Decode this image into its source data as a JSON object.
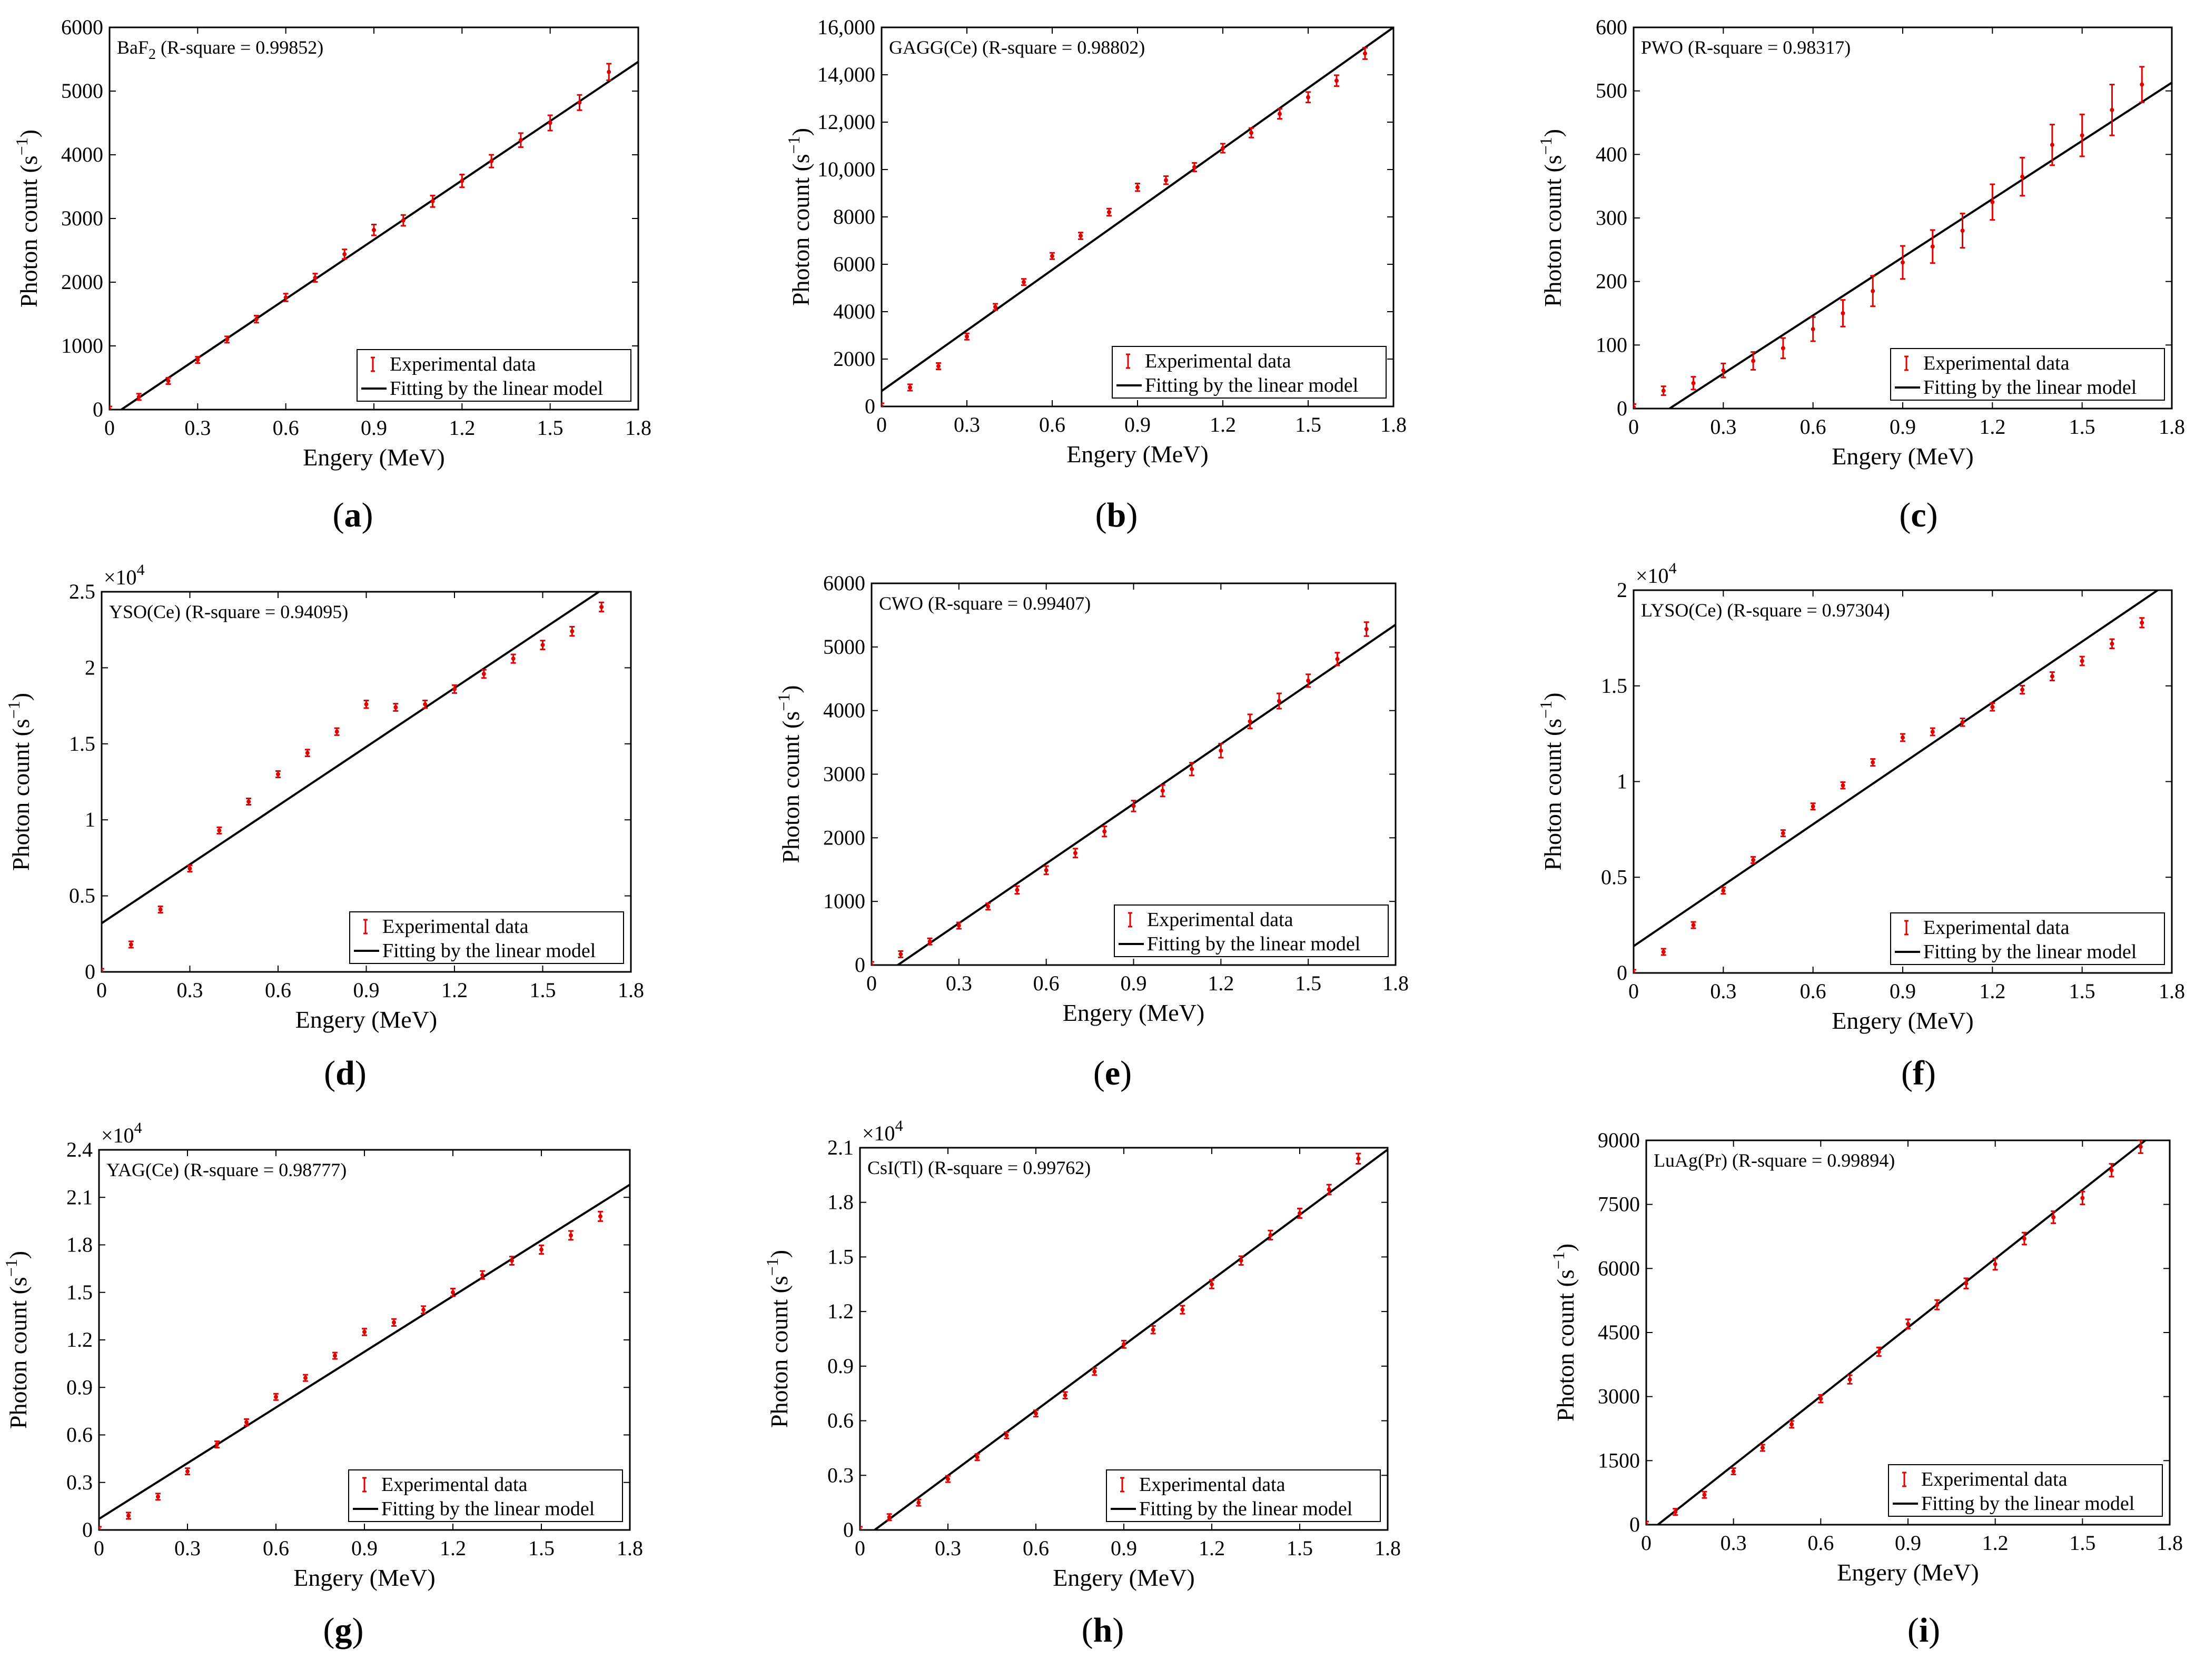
{
  "colors": {
    "data": "#e00000",
    "fit": "#000000",
    "axis": "#000000"
  },
  "chart_data": [
    {
      "type": "scatter",
      "letter": "a",
      "title": "BaF",
      "title_sub": "2",
      "title_suffix": " (R-square = 0.99852)",
      "xlabel": "Engery (MeV)",
      "ylabel_main": "Photon count (s",
      "ylabel_sup": "−1",
      "ylabel_close": ")",
      "xlim": [
        0,
        1.8
      ],
      "ylim": [
        0,
        6000
      ],
      "exponent": "",
      "xticks": [
        0,
        0.3,
        0.6,
        0.9,
        1.2,
        1.5,
        1.8
      ],
      "xtick_labels": [
        "0",
        "0.3",
        "0.6",
        "0.9",
        "1.2",
        "1.5",
        "1.8"
      ],
      "yticks": [
        0,
        1000,
        2000,
        3000,
        4000,
        5000,
        6000
      ],
      "ytick_labels": [
        "0",
        "1000",
        "2000",
        "3000",
        "4000",
        "5000",
        "6000"
      ],
      "legend": [
        "Experimental data",
        "Fitting by the linear model"
      ],
      "x": [
        0,
        0.1,
        0.2,
        0.3,
        0.4,
        0.5,
        0.6,
        0.7,
        0.8,
        0.9,
        1.0,
        1.1,
        1.2,
        1.3,
        1.4,
        1.5,
        1.6,
        1.7
      ],
      "y": [
        0,
        200,
        450,
        780,
        1100,
        1420,
        1760,
        2070,
        2440,
        2820,
        2970,
        3270,
        3590,
        3900,
        4230,
        4500,
        4820,
        5300
      ],
      "err": [
        20,
        25,
        30,
        40,
        45,
        55,
        60,
        65,
        75,
        85,
        85,
        90,
        100,
        100,
        110,
        120,
        120,
        130
      ],
      "fit": {
        "x0": 0.04,
        "y0": 0,
        "x1": 1.8,
        "y1": 5460
      }
    },
    {
      "type": "scatter",
      "letter": "b",
      "title": "GAGG(Ce) (R-square = 0.98802)",
      "title_sub": "",
      "title_suffix": "",
      "xlabel": "Engery (MeV)",
      "ylabel_main": "Photon count (s",
      "ylabel_sup": "−1",
      "ylabel_close": ")",
      "xlim": [
        0,
        1.8
      ],
      "ylim": [
        0,
        16000
      ],
      "exponent": "",
      "xticks": [
        0,
        0.3,
        0.6,
        0.9,
        1.2,
        1.5,
        1.8
      ],
      "xtick_labels": [
        "0",
        "0.3",
        "0.6",
        "0.9",
        "1.2",
        "1.5",
        "1.8"
      ],
      "yticks": [
        0,
        2000,
        4000,
        6000,
        8000,
        10000,
        12000,
        14000,
        16000
      ],
      "ytick_labels": [
        "0",
        "2000",
        "4000",
        "6000",
        "8000",
        "10,000",
        "12,000",
        "14,000",
        "16,000"
      ],
      "legend": [
        "Experimental data",
        "Fitting by the linear model"
      ],
      "x": [
        0,
        0.1,
        0.2,
        0.3,
        0.4,
        0.5,
        0.6,
        0.7,
        0.8,
        0.9,
        1.0,
        1.1,
        1.2,
        1.3,
        1.4,
        1.5,
        1.6,
        1.7
      ],
      "y": [
        0,
        800,
        1700,
        2950,
        4200,
        5250,
        6350,
        7200,
        8200,
        9250,
        9550,
        10100,
        10900,
        11550,
        12350,
        13050,
        13750,
        14900
      ],
      "err": [
        40,
        60,
        80,
        100,
        110,
        120,
        130,
        140,
        150,
        160,
        170,
        180,
        190,
        200,
        210,
        220,
        230,
        240
      ],
      "fit": {
        "x0": 0,
        "y0": 650,
        "x1": 1.8,
        "y1": 16000
      }
    },
    {
      "type": "scatter",
      "letter": "c",
      "title": "PWO (R-square = 0.98317)",
      "title_sub": "",
      "title_suffix": "",
      "xlabel": "Engery (MeV)",
      "ylabel_main": "Photon count (s",
      "ylabel_sup": "−1",
      "ylabel_close": ")",
      "xlim": [
        0,
        1.8
      ],
      "ylim": [
        0,
        600
      ],
      "exponent": "",
      "xticks": [
        0,
        0.3,
        0.6,
        0.9,
        1.2,
        1.5,
        1.8
      ],
      "xtick_labels": [
        "0",
        "0.3",
        "0.6",
        "0.9",
        "1.2",
        "1.5",
        "1.8"
      ],
      "yticks": [
        0,
        100,
        200,
        300,
        400,
        500,
        600
      ],
      "ytick_labels": [
        "0",
        "100",
        "200",
        "300",
        "400",
        "500",
        "600"
      ],
      "legend": [
        "Experimental data",
        "Fitting by the linear model"
      ],
      "x": [
        0,
        0.1,
        0.2,
        0.3,
        0.4,
        0.5,
        0.6,
        0.7,
        0.8,
        0.9,
        1.0,
        1.1,
        1.2,
        1.3,
        1.4,
        1.5,
        1.6,
        1.7
      ],
      "y": [
        2,
        28,
        40,
        60,
        75,
        95,
        125,
        150,
        185,
        230,
        255,
        280,
        325,
        365,
        415,
        430,
        470,
        510
      ],
      "err": [
        3,
        7,
        10,
        11,
        14,
        16,
        19,
        21,
        24,
        26,
        26,
        27,
        28,
        30,
        32,
        33,
        40,
        28
      ],
      "fit": {
        "x0": 0.12,
        "y0": 0,
        "x1": 1.8,
        "y1": 513
      }
    },
    {
      "type": "scatter",
      "letter": "d",
      "title": "YSO(Ce) (R-square = 0.94095)",
      "title_sub": "",
      "title_suffix": "",
      "xlabel": "Engery (MeV)",
      "ylabel_main": "Photon count (s",
      "ylabel_sup": "−1",
      "ylabel_close": ")",
      "xlim": [
        0,
        1.8
      ],
      "ylim": [
        0,
        25000
      ],
      "exponent": "×10",
      "exponent_sup": "4",
      "xticks": [
        0,
        0.3,
        0.6,
        0.9,
        1.2,
        1.5,
        1.8
      ],
      "xtick_labels": [
        "0",
        "0.3",
        "0.6",
        "0.9",
        "1.2",
        "1.5",
        "1.8"
      ],
      "yticks": [
        0,
        5000,
        10000,
        15000,
        20000,
        25000
      ],
      "ytick_labels": [
        "0",
        "0.5",
        "1",
        "1.5",
        "2",
        "2.5"
      ],
      "legend": [
        "Experimental data",
        "Fitting by the linear model"
      ],
      "x": [
        0,
        0.1,
        0.2,
        0.3,
        0.4,
        0.5,
        0.6,
        0.7,
        0.8,
        0.9,
        1.0,
        1.1,
        1.2,
        1.3,
        1.4,
        1.5,
        1.6,
        1.7
      ],
      "y": [
        0,
        1800,
        4100,
        6800,
        9300,
        11200,
        13000,
        14400,
        15800,
        17600,
        17400,
        17600,
        18600,
        19600,
        20600,
        21500,
        22400,
        24000
      ],
      "err": [
        60,
        100,
        130,
        160,
        180,
        200,
        210,
        220,
        230,
        250,
        240,
        250,
        260,
        270,
        280,
        290,
        300,
        300
      ],
      "fit": {
        "x0": 0,
        "y0": 3200,
        "x1": 1.8,
        "y1": 26400
      }
    },
    {
      "type": "scatter",
      "letter": "e",
      "title": "CWO (R-square = 0.99407)",
      "title_sub": "",
      "title_suffix": "",
      "xlabel": "Engery (MeV)",
      "ylabel_main": "Photon count (s",
      "ylabel_sup": "−1",
      "ylabel_close": ")",
      "xlim": [
        0,
        1.8
      ],
      "ylim": [
        0,
        6000
      ],
      "exponent": "",
      "xticks": [
        0,
        0.3,
        0.6,
        0.9,
        1.2,
        1.5,
        1.8
      ],
      "xtick_labels": [
        "0",
        "0.3",
        "0.6",
        "0.9",
        "1.2",
        "1.5",
        "1.8"
      ],
      "yticks": [
        0,
        1000,
        2000,
        3000,
        4000,
        5000,
        6000
      ],
      "ytick_labels": [
        "0",
        "1000",
        "2000",
        "3000",
        "4000",
        "5000",
        "6000"
      ],
      "legend": [
        "Experimental data",
        "Fitting by the linear model"
      ],
      "x": [
        0,
        0.1,
        0.2,
        0.3,
        0.4,
        0.5,
        0.6,
        0.7,
        0.8,
        0.9,
        1.0,
        1.1,
        1.2,
        1.3,
        1.4,
        1.5,
        1.6,
        1.7
      ],
      "y": [
        0,
        170,
        370,
        620,
        920,
        1180,
        1490,
        1760,
        2100,
        2500,
        2740,
        3080,
        3370,
        3830,
        4150,
        4470,
        4810,
        5280
      ],
      "err": [
        20,
        25,
        30,
        40,
        50,
        60,
        65,
        70,
        80,
        85,
        90,
        100,
        110,
        110,
        120,
        100,
        100,
        110
      ],
      "fit": {
        "x0": 0.09,
        "y0": 0,
        "x1": 1.8,
        "y1": 5350
      }
    },
    {
      "type": "scatter",
      "letter": "f",
      "title": "LYSO(Ce) (R-square = 0.97304)",
      "title_sub": "",
      "title_suffix": "",
      "xlabel": "Engery (MeV)",
      "ylabel_main": "Photon count (s",
      "ylabel_sup": "−1",
      "ylabel_close": ")",
      "xlim": [
        0,
        1.8
      ],
      "ylim": [
        0,
        20000
      ],
      "exponent": "×10",
      "exponent_sup": "4",
      "xticks": [
        0,
        0.3,
        0.6,
        0.9,
        1.2,
        1.5,
        1.8
      ],
      "xtick_labels": [
        "0",
        "0.3",
        "0.6",
        "0.9",
        "1.2",
        "1.5",
        "1.8"
      ],
      "yticks": [
        0,
        5000,
        10000,
        15000,
        20000
      ],
      "ytick_labels": [
        "0",
        "0.5",
        "1",
        "1.5",
        "2"
      ],
      "legend": [
        "Experimental data",
        "Fitting by the linear model"
      ],
      "x": [
        0,
        0.1,
        0.2,
        0.3,
        0.4,
        0.5,
        0.6,
        0.7,
        0.8,
        0.9,
        1.0,
        1.1,
        1.2,
        1.3,
        1.4,
        1.5,
        1.6,
        1.7
      ],
      "y": [
        0,
        1100,
        2500,
        4300,
        5900,
        7300,
        8700,
        9800,
        11000,
        12300,
        12600,
        13100,
        13900,
        14800,
        15500,
        16300,
        17200,
        18300
      ],
      "err": [
        50,
        80,
        100,
        120,
        140,
        150,
        160,
        170,
        180,
        190,
        190,
        200,
        200,
        210,
        220,
        230,
        240,
        250
      ],
      "fit": {
        "x0": 0,
        "y0": 1400,
        "x1": 1.8,
        "y1": 20500
      }
    },
    {
      "type": "scatter",
      "letter": "g",
      "title": "YAG(Ce) (R-square = 0.98777)",
      "title_sub": "",
      "title_suffix": "",
      "xlabel": "Engery (MeV)",
      "ylabel_main": "Photon count (s",
      "ylabel_sup": "−1",
      "ylabel_close": ")",
      "xlim": [
        0,
        1.8
      ],
      "ylim": [
        0,
        24000
      ],
      "exponent": "×10",
      "exponent_sup": "4",
      "xticks": [
        0,
        0.3,
        0.6,
        0.9,
        1.2,
        1.5,
        1.8
      ],
      "xtick_labels": [
        "0",
        "0.3",
        "0.6",
        "0.9",
        "1.2",
        "1.5",
        "1.8"
      ],
      "yticks": [
        0,
        3000,
        6000,
        9000,
        12000,
        15000,
        18000,
        21000,
        24000
      ],
      "ytick_labels": [
        "0",
        "0.3",
        "0.6",
        "0.9",
        "1.2",
        "1.5",
        "1.8",
        "2.1",
        "2.4"
      ],
      "legend": [
        "Experimental data",
        "Fitting by the linear model"
      ],
      "x": [
        0,
        0.1,
        0.2,
        0.3,
        0.4,
        0.5,
        0.6,
        0.7,
        0.8,
        0.9,
        1.0,
        1.1,
        1.2,
        1.3,
        1.4,
        1.5,
        1.6,
        1.7
      ],
      "y": [
        0,
        900,
        2100,
        3700,
        5400,
        6800,
        8400,
        9600,
        11000,
        12500,
        13100,
        13900,
        15000,
        16100,
        17000,
        17700,
        18600,
        19800
      ],
      "err": [
        60,
        90,
        110,
        130,
        150,
        160,
        170,
        180,
        200,
        210,
        220,
        230,
        240,
        250,
        260,
        270,
        280,
        300
      ],
      "fit": {
        "x0": 0,
        "y0": 700,
        "x1": 1.8,
        "y1": 21800
      }
    },
    {
      "type": "scatter",
      "letter": "h",
      "title": "CsI(Tl) (R-square = 0.99762)",
      "title_sub": "",
      "title_suffix": "",
      "xlabel": "Engery (MeV)",
      "ylabel_main": "Photon count (s",
      "ylabel_sup": "−1",
      "ylabel_close": ")",
      "xlim": [
        0,
        1.8
      ],
      "ylim": [
        0,
        21000
      ],
      "exponent": "×10",
      "exponent_sup": "4",
      "xticks": [
        0,
        0.3,
        0.6,
        0.9,
        1.2,
        1.5,
        1.8
      ],
      "xtick_labels": [
        "0",
        "0.3",
        "0.6",
        "0.9",
        "1.2",
        "1.5",
        "1.8"
      ],
      "yticks": [
        0,
        3000,
        6000,
        9000,
        12000,
        15000,
        18000,
        21000
      ],
      "ytick_labels": [
        "0",
        "0.3",
        "0.6",
        "0.9",
        "1.2",
        "1.5",
        "1.8",
        "2.1"
      ],
      "legend": [
        "Experimental data",
        "Fitting by the linear model"
      ],
      "x": [
        0,
        0.1,
        0.2,
        0.3,
        0.4,
        0.5,
        0.6,
        0.7,
        0.8,
        0.9,
        1.0,
        1.1,
        1.2,
        1.3,
        1.4,
        1.5,
        1.6,
        1.7
      ],
      "y": [
        0,
        700,
        1500,
        2800,
        4000,
        5200,
        6400,
        7400,
        8700,
        10200,
        11000,
        12100,
        13500,
        14800,
        16200,
        17400,
        18700,
        20400
      ],
      "err": [
        60,
        80,
        100,
        120,
        140,
        150,
        160,
        180,
        190,
        200,
        210,
        220,
        230,
        240,
        250,
        260,
        270,
        280
      ],
      "fit": {
        "x0": 0.05,
        "y0": 0,
        "x1": 1.8,
        "y1": 20900
      }
    },
    {
      "type": "scatter",
      "letter": "i",
      "title": "LuAg(Pr) (R-square = 0.99894)",
      "title_sub": "",
      "title_suffix": "",
      "xlabel": "Engery (MeV)",
      "ylabel_main": "Photon count (s",
      "ylabel_sup": "−1",
      "ylabel_close": ")",
      "xlim": [
        0,
        1.8
      ],
      "ylim": [
        0,
        9000
      ],
      "exponent": "",
      "xticks": [
        0,
        0.3,
        0.6,
        0.9,
        1.2,
        1.5,
        1.8
      ],
      "xtick_labels": [
        "0",
        "0.3",
        "0.6",
        "0.9",
        "1.2",
        "1.5",
        "1.8"
      ],
      "yticks": [
        0,
        1500,
        3000,
        4500,
        6000,
        7500,
        9000
      ],
      "ytick_labels": [
        "0",
        "1500",
        "3000",
        "4500",
        "6000",
        "7500",
        "9000"
      ],
      "legend": [
        "Experimental data",
        "Fitting by the linear model"
      ],
      "x": [
        0,
        0.1,
        0.2,
        0.3,
        0.4,
        0.5,
        0.6,
        0.7,
        0.8,
        0.9,
        1.0,
        1.1,
        1.2,
        1.3,
        1.4,
        1.5,
        1.6,
        1.7
      ],
      "y": [
        0,
        300,
        700,
        1250,
        1800,
        2350,
        2950,
        3400,
        4050,
        4700,
        5150,
        5650,
        6100,
        6700,
        7200,
        7650,
        8300,
        8850
      ],
      "err": [
        20,
        40,
        50,
        60,
        70,
        80,
        90,
        100,
        100,
        110,
        110,
        120,
        130,
        140,
        140,
        150,
        150,
        150
      ],
      "fit": {
        "x0": 0.04,
        "y0": 0,
        "x1": 1.8,
        "y1": 9450
      }
    }
  ]
}
